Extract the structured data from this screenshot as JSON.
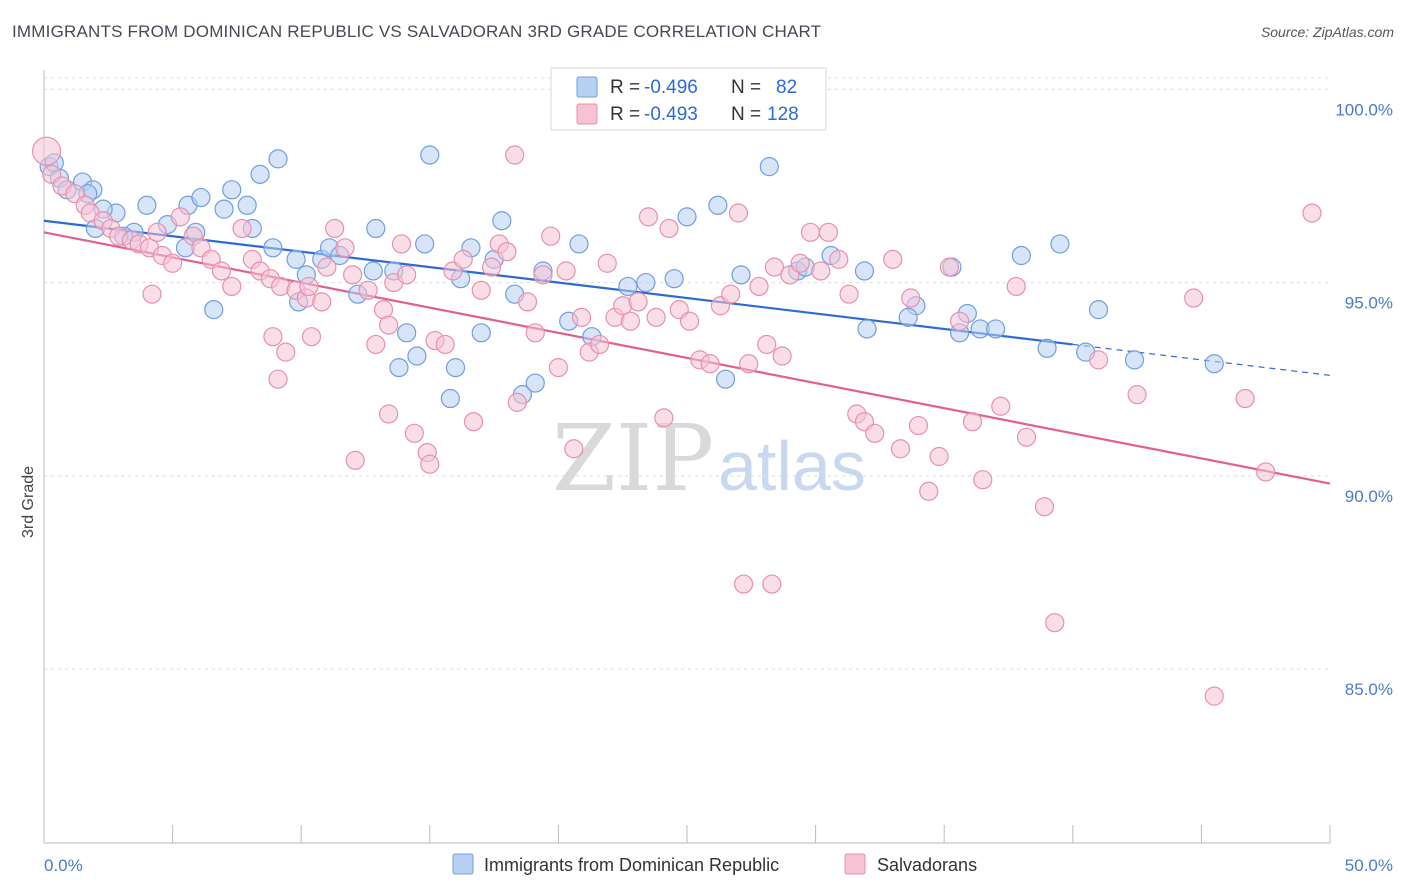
{
  "header": {
    "title": "IMMIGRANTS FROM DOMINICAN REPUBLIC VS SALVADORAN 3RD GRADE CORRELATION CHART",
    "source": "Source: ZipAtlas.com"
  },
  "watermark": {
    "zip": "ZIP",
    "atlas": "atlas"
  },
  "chart_data": {
    "type": "scatter",
    "title": "IMMIGRANTS FROM DOMINICAN REPUBLIC VS SALVADORAN 3RD GRADE CORRELATION CHART",
    "xlabel": "",
    "ylabel": "3rd Grade",
    "xlim": [
      0,
      50
    ],
    "ylim": [
      80.5,
      100.5
    ],
    "x_tick_labels": [
      "0.0%",
      "50.0%"
    ],
    "y_ticks": [
      85,
      90,
      95,
      100
    ],
    "y_tick_labels": [
      "85.0%",
      "90.0%",
      "95.0%",
      "100.0%"
    ],
    "grid": true,
    "legend_placement": "top-center",
    "legend": [
      {
        "r_label": "R =",
        "r_value": "-0.496",
        "n_label": "N =",
        "n_value": "82"
      },
      {
        "r_label": "R =",
        "r_value": "-0.493",
        "n_label": "N =",
        "n_value": "128"
      }
    ],
    "series": [
      {
        "name": "Immigrants from Dominican Republic",
        "color": "#6f9fe0",
        "fill": "#b8d0f2",
        "trend": {
          "x0": 0,
          "y0": 96.6,
          "x1": 40,
          "y1": 93.4,
          "dash_to_x": 50,
          "dash_to_y": 92.6,
          "color": "#2e6ad6"
        },
        "points": [
          [
            0.2,
            98.0
          ],
          [
            0.6,
            97.7
          ],
          [
            0.9,
            97.4
          ],
          [
            1.5,
            97.6
          ],
          [
            1.9,
            97.4
          ],
          [
            1.7,
            97.3
          ],
          [
            2.8,
            96.8
          ],
          [
            2.3,
            96.9
          ],
          [
            3.5,
            96.3
          ],
          [
            4.0,
            97.0
          ],
          [
            4.8,
            96.5
          ],
          [
            5.5,
            95.9
          ],
          [
            5.9,
            96.3
          ],
          [
            5.6,
            97.0
          ],
          [
            6.1,
            97.2
          ],
          [
            7.0,
            96.9
          ],
          [
            7.3,
            97.4
          ],
          [
            7.9,
            97.0
          ],
          [
            8.4,
            97.8
          ],
          [
            8.1,
            96.4
          ],
          [
            9.1,
            98.2
          ],
          [
            9.8,
            95.6
          ],
          [
            9.9,
            94.5
          ],
          [
            10.2,
            95.2
          ],
          [
            8.9,
            95.9
          ],
          [
            10.8,
            95.6
          ],
          [
            11.1,
            95.9
          ],
          [
            11.5,
            95.7
          ],
          [
            12.2,
            94.7
          ],
          [
            12.8,
            95.3
          ],
          [
            12.9,
            96.4
          ],
          [
            13.6,
            95.3
          ],
          [
            13.8,
            92.8
          ],
          [
            14.1,
            93.7
          ],
          [
            14.8,
            96.0
          ],
          [
            15.0,
            98.3
          ],
          [
            14.5,
            93.1
          ],
          [
            15.8,
            92.0
          ],
          [
            16.0,
            92.8
          ],
          [
            16.6,
            95.9
          ],
          [
            16.2,
            95.1
          ],
          [
            17.0,
            93.7
          ],
          [
            17.5,
            95.6
          ],
          [
            17.8,
            96.6
          ],
          [
            18.3,
            94.7
          ],
          [
            18.6,
            92.1
          ],
          [
            19.1,
            92.4
          ],
          [
            19.4,
            95.3
          ],
          [
            20.8,
            96.0
          ],
          [
            20.4,
            94.0
          ],
          [
            21.3,
            93.6
          ],
          [
            22.7,
            94.9
          ],
          [
            23.4,
            95.0
          ],
          [
            24.5,
            95.1
          ],
          [
            25.0,
            96.7
          ],
          [
            26.2,
            97.0
          ],
          [
            26.5,
            92.5
          ],
          [
            27.1,
            95.2
          ],
          [
            28.2,
            98.0
          ],
          [
            29.3,
            95.3
          ],
          [
            29.6,
            95.4
          ],
          [
            30.6,
            95.7
          ],
          [
            32.0,
            93.8
          ],
          [
            31.9,
            95.3
          ],
          [
            33.9,
            94.4
          ],
          [
            33.6,
            94.1
          ],
          [
            35.3,
            95.4
          ],
          [
            35.9,
            94.2
          ],
          [
            35.6,
            93.7
          ],
          [
            36.4,
            93.8
          ],
          [
            37.0,
            93.8
          ],
          [
            38.0,
            95.7
          ],
          [
            39.0,
            93.3
          ],
          [
            39.5,
            96.0
          ],
          [
            41.0,
            94.3
          ],
          [
            42.4,
            93.0
          ],
          [
            40.5,
            93.2
          ],
          [
            45.5,
            92.9
          ],
          [
            2.0,
            96.4
          ],
          [
            3.1,
            96.2
          ],
          [
            6.6,
            94.3
          ],
          [
            0.4,
            98.1
          ]
        ]
      },
      {
        "name": "Salvadorans",
        "color": "#e98fb0",
        "fill": "#f6c2d4",
        "trend": {
          "x0": 0,
          "y0": 96.3,
          "x1": 50,
          "y1": 89.8,
          "color": "#e2608e"
        },
        "points": [
          [
            0.1,
            98.4
          ],
          [
            0.3,
            97.8
          ],
          [
            0.7,
            97.5
          ],
          [
            1.2,
            97.3
          ],
          [
            1.6,
            97.0
          ],
          [
            1.8,
            96.8
          ],
          [
            2.3,
            96.6
          ],
          [
            2.6,
            96.4
          ],
          [
            2.9,
            96.2
          ],
          [
            3.4,
            96.1
          ],
          [
            3.7,
            96.0
          ],
          [
            4.1,
            95.9
          ],
          [
            4.4,
            96.3
          ],
          [
            4.6,
            95.7
          ],
          [
            4.2,
            94.7
          ],
          [
            5.0,
            95.5
          ],
          [
            5.3,
            96.7
          ],
          [
            5.8,
            96.2
          ],
          [
            6.1,
            95.9
          ],
          [
            6.5,
            95.6
          ],
          [
            6.9,
            95.3
          ],
          [
            7.3,
            94.9
          ],
          [
            7.7,
            96.4
          ],
          [
            8.1,
            95.6
          ],
          [
            8.4,
            95.3
          ],
          [
            8.8,
            95.1
          ],
          [
            8.9,
            93.6
          ],
          [
            9.2,
            94.9
          ],
          [
            9.4,
            93.2
          ],
          [
            9.8,
            94.8
          ],
          [
            10.2,
            94.6
          ],
          [
            10.4,
            93.6
          ],
          [
            10.8,
            94.5
          ],
          [
            11.0,
            95.4
          ],
          [
            11.3,
            96.4
          ],
          [
            11.7,
            95.9
          ],
          [
            12.0,
            95.2
          ],
          [
            12.1,
            90.4
          ],
          [
            12.6,
            94.8
          ],
          [
            12.9,
            93.4
          ],
          [
            13.2,
            94.3
          ],
          [
            13.4,
            93.9
          ],
          [
            13.6,
            95.0
          ],
          [
            13.9,
            96.0
          ],
          [
            14.1,
            95.2
          ],
          [
            14.4,
            91.1
          ],
          [
            14.9,
            90.6
          ],
          [
            15.2,
            93.5
          ],
          [
            15.6,
            93.4
          ],
          [
            15.9,
            95.3
          ],
          [
            16.3,
            95.6
          ],
          [
            16.7,
            91.4
          ],
          [
            17.0,
            94.8
          ],
          [
            17.4,
            95.4
          ],
          [
            17.7,
            96.0
          ],
          [
            18.0,
            95.8
          ],
          [
            18.4,
            91.9
          ],
          [
            18.8,
            94.5
          ],
          [
            19.1,
            93.7
          ],
          [
            19.4,
            95.2
          ],
          [
            19.7,
            96.2
          ],
          [
            20.0,
            92.8
          ],
          [
            20.3,
            95.3
          ],
          [
            20.6,
            90.7
          ],
          [
            20.9,
            94.1
          ],
          [
            21.2,
            93.2
          ],
          [
            21.6,
            93.4
          ],
          [
            21.9,
            95.5
          ],
          [
            22.2,
            94.1
          ],
          [
            22.5,
            94.4
          ],
          [
            22.8,
            94.0
          ],
          [
            23.1,
            94.5
          ],
          [
            23.5,
            96.7
          ],
          [
            23.8,
            94.1
          ],
          [
            24.1,
            91.5
          ],
          [
            24.3,
            96.4
          ],
          [
            24.7,
            94.3
          ],
          [
            25.1,
            94.0
          ],
          [
            25.5,
            93.0
          ],
          [
            25.9,
            92.9
          ],
          [
            26.3,
            94.4
          ],
          [
            26.7,
            94.7
          ],
          [
            27.0,
            96.8
          ],
          [
            27.4,
            92.9
          ],
          [
            27.8,
            94.9
          ],
          [
            28.1,
            93.4
          ],
          [
            28.4,
            95.4
          ],
          [
            28.7,
            93.1
          ],
          [
            29.0,
            95.2
          ],
          [
            29.4,
            95.5
          ],
          [
            29.8,
            96.3
          ],
          [
            30.2,
            95.3
          ],
          [
            30.5,
            96.3
          ],
          [
            30.9,
            95.6
          ],
          [
            31.3,
            94.7
          ],
          [
            31.6,
            91.6
          ],
          [
            31.9,
            91.4
          ],
          [
            32.3,
            91.1
          ],
          [
            33.0,
            95.6
          ],
          [
            33.3,
            90.7
          ],
          [
            33.7,
            94.6
          ],
          [
            34.0,
            91.3
          ],
          [
            34.4,
            89.6
          ],
          [
            34.8,
            90.5
          ],
          [
            35.2,
            95.4
          ],
          [
            35.6,
            94.0
          ],
          [
            36.1,
            91.4
          ],
          [
            36.5,
            89.9
          ],
          [
            37.2,
            91.8
          ],
          [
            37.8,
            94.9
          ],
          [
            38.2,
            91.0
          ],
          [
            38.9,
            89.2
          ],
          [
            39.3,
            86.2
          ],
          [
            41.0,
            93.0
          ],
          [
            42.5,
            92.1
          ],
          [
            44.7,
            94.6
          ],
          [
            45.5,
            84.3
          ],
          [
            46.7,
            92.0
          ],
          [
            47.5,
            90.1
          ],
          [
            49.3,
            96.8
          ],
          [
            27.2,
            87.2
          ],
          [
            28.3,
            87.2
          ],
          [
            26.0,
            100.2
          ],
          [
            18.3,
            98.3
          ],
          [
            15.0,
            90.3
          ],
          [
            13.4,
            91.6
          ],
          [
            10.3,
            94.9
          ],
          [
            9.1,
            92.5
          ]
        ]
      }
    ]
  },
  "bottom_legend": [
    {
      "label": "Immigrants from Dominican Republic"
    },
    {
      "label": "Salvadorans"
    }
  ]
}
